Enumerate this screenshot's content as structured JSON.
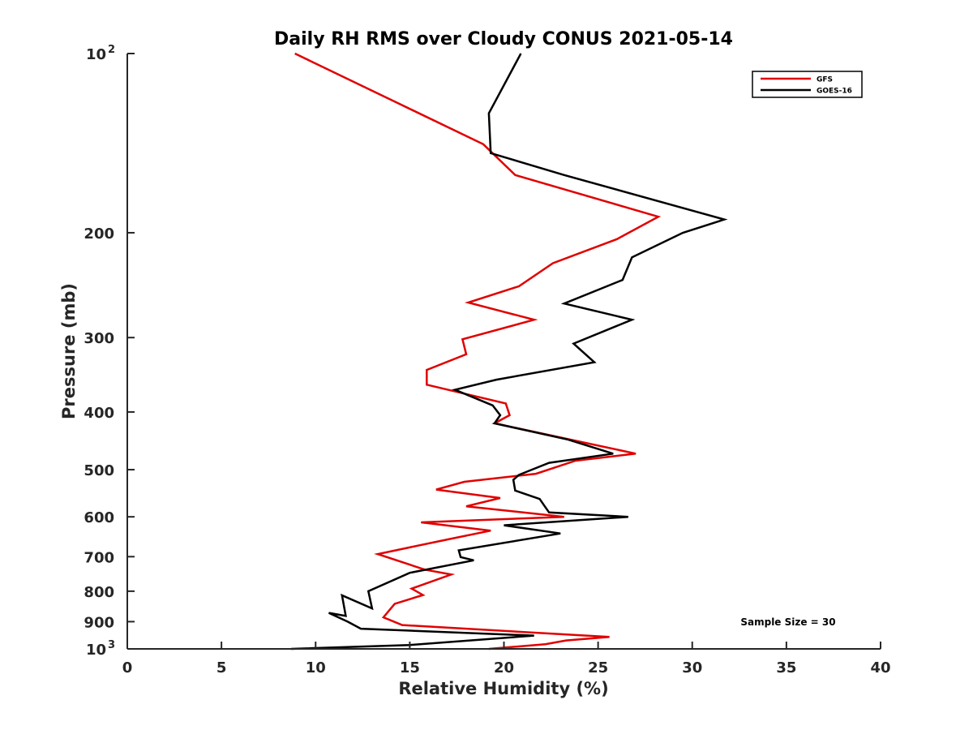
{
  "chart_data": {
    "type": "line",
    "title": "Daily RH RMS over Cloudy CONUS 2021-05-14",
    "xlabel": "Relative Humidity (%)",
    "ylabel": "Pressure (mb)",
    "xlim": [
      0,
      40
    ],
    "ylim": [
      100,
      1000
    ],
    "y_scale": "log",
    "y_reversed": true,
    "grid": false,
    "legend_position": "top-right",
    "x_ticks": [
      {
        "value": 0,
        "label": "0"
      },
      {
        "value": 5,
        "label": "5"
      },
      {
        "value": 10,
        "label": "10"
      },
      {
        "value": 15,
        "label": "15"
      },
      {
        "value": 20,
        "label": "20"
      },
      {
        "value": 25,
        "label": "25"
      },
      {
        "value": 30,
        "label": "30"
      },
      {
        "value": 35,
        "label": "35"
      },
      {
        "value": 40,
        "label": "40"
      }
    ],
    "y_ticks": [
      {
        "value": 100,
        "label": "10",
        "sup": "2"
      },
      {
        "value": 200,
        "label": "200",
        "sup": ""
      },
      {
        "value": 300,
        "label": "300",
        "sup": ""
      },
      {
        "value": 400,
        "label": "400",
        "sup": ""
      },
      {
        "value": 500,
        "label": "500",
        "sup": ""
      },
      {
        "value": 600,
        "label": "600",
        "sup": ""
      },
      {
        "value": 700,
        "label": "700",
        "sup": ""
      },
      {
        "value": 800,
        "label": "800",
        "sup": ""
      },
      {
        "value": 900,
        "label": "900",
        "sup": ""
      },
      {
        "value": 1000,
        "label": "10",
        "sup": "3"
      }
    ],
    "series": [
      {
        "name": "GFS",
        "color": "#e00000",
        "points": [
          [
            8.9,
            100
          ],
          [
            18.9,
            142
          ],
          [
            20.6,
            160
          ],
          [
            28.2,
            188
          ],
          [
            26.0,
            205
          ],
          [
            22.6,
            225
          ],
          [
            20.8,
            246
          ],
          [
            18.1,
            262
          ],
          [
            21.6,
            280
          ],
          [
            17.8,
            302
          ],
          [
            18.0,
            320
          ],
          [
            15.9,
            340
          ],
          [
            15.9,
            360
          ],
          [
            20.1,
            387
          ],
          [
            20.3,
            405
          ],
          [
            19.5,
            418
          ],
          [
            23.5,
            445
          ],
          [
            27.0,
            470
          ],
          [
            23.8,
            483
          ],
          [
            21.7,
            508
          ],
          [
            17.9,
            524
          ],
          [
            16.4,
            540
          ],
          [
            19.8,
            558
          ],
          [
            18.0,
            576
          ],
          [
            23.2,
            600
          ],
          [
            15.6,
            613
          ],
          [
            19.3,
            633
          ],
          [
            17.0,
            655
          ],
          [
            13.3,
            693
          ],
          [
            15.8,
            736
          ],
          [
            17.2,
            750
          ],
          [
            15.1,
            792
          ],
          [
            15.7,
            812
          ],
          [
            14.2,
            840
          ],
          [
            14.0,
            855
          ],
          [
            13.6,
            885
          ],
          [
            14.6,
            912
          ],
          [
            25.6,
            955
          ],
          [
            23.3,
            968
          ],
          [
            22.2,
            982
          ],
          [
            19.2,
            1000
          ]
        ]
      },
      {
        "name": "GOES-16",
        "color": "#000000",
        "points": [
          [
            20.9,
            100
          ],
          [
            19.2,
            126
          ],
          [
            19.3,
            147
          ],
          [
            23.2,
            160
          ],
          [
            31.7,
            190
          ],
          [
            29.5,
            200
          ],
          [
            26.8,
            220
          ],
          [
            26.3,
            240
          ],
          [
            23.2,
            263
          ],
          [
            26.8,
            280
          ],
          [
            23.7,
            307
          ],
          [
            24.8,
            330
          ],
          [
            19.6,
            353
          ],
          [
            17.4,
            367
          ],
          [
            19.4,
            390
          ],
          [
            19.8,
            405
          ],
          [
            19.5,
            418
          ],
          [
            23.4,
            445
          ],
          [
            25.8,
            470
          ],
          [
            22.4,
            487
          ],
          [
            20.8,
            510
          ],
          [
            20.5,
            520
          ],
          [
            20.6,
            542
          ],
          [
            21.9,
            560
          ],
          [
            22.2,
            578
          ],
          [
            22.4,
            590
          ],
          [
            26.6,
            600
          ],
          [
            20.0,
            620
          ],
          [
            23.0,
            640
          ],
          [
            17.6,
            683
          ],
          [
            17.7,
            701
          ],
          [
            18.4,
            710
          ],
          [
            15.0,
            745
          ],
          [
            12.8,
            800
          ],
          [
            13.0,
            855
          ],
          [
            11.4,
            813
          ],
          [
            11.6,
            880
          ],
          [
            10.7,
            870
          ],
          [
            11.7,
            900
          ],
          [
            12.4,
            925
          ],
          [
            21.6,
            950
          ],
          [
            15.0,
            985
          ],
          [
            8.7,
            1000
          ]
        ]
      }
    ],
    "annotations": [
      {
        "text": "Sample Size = 30"
      }
    ]
  }
}
